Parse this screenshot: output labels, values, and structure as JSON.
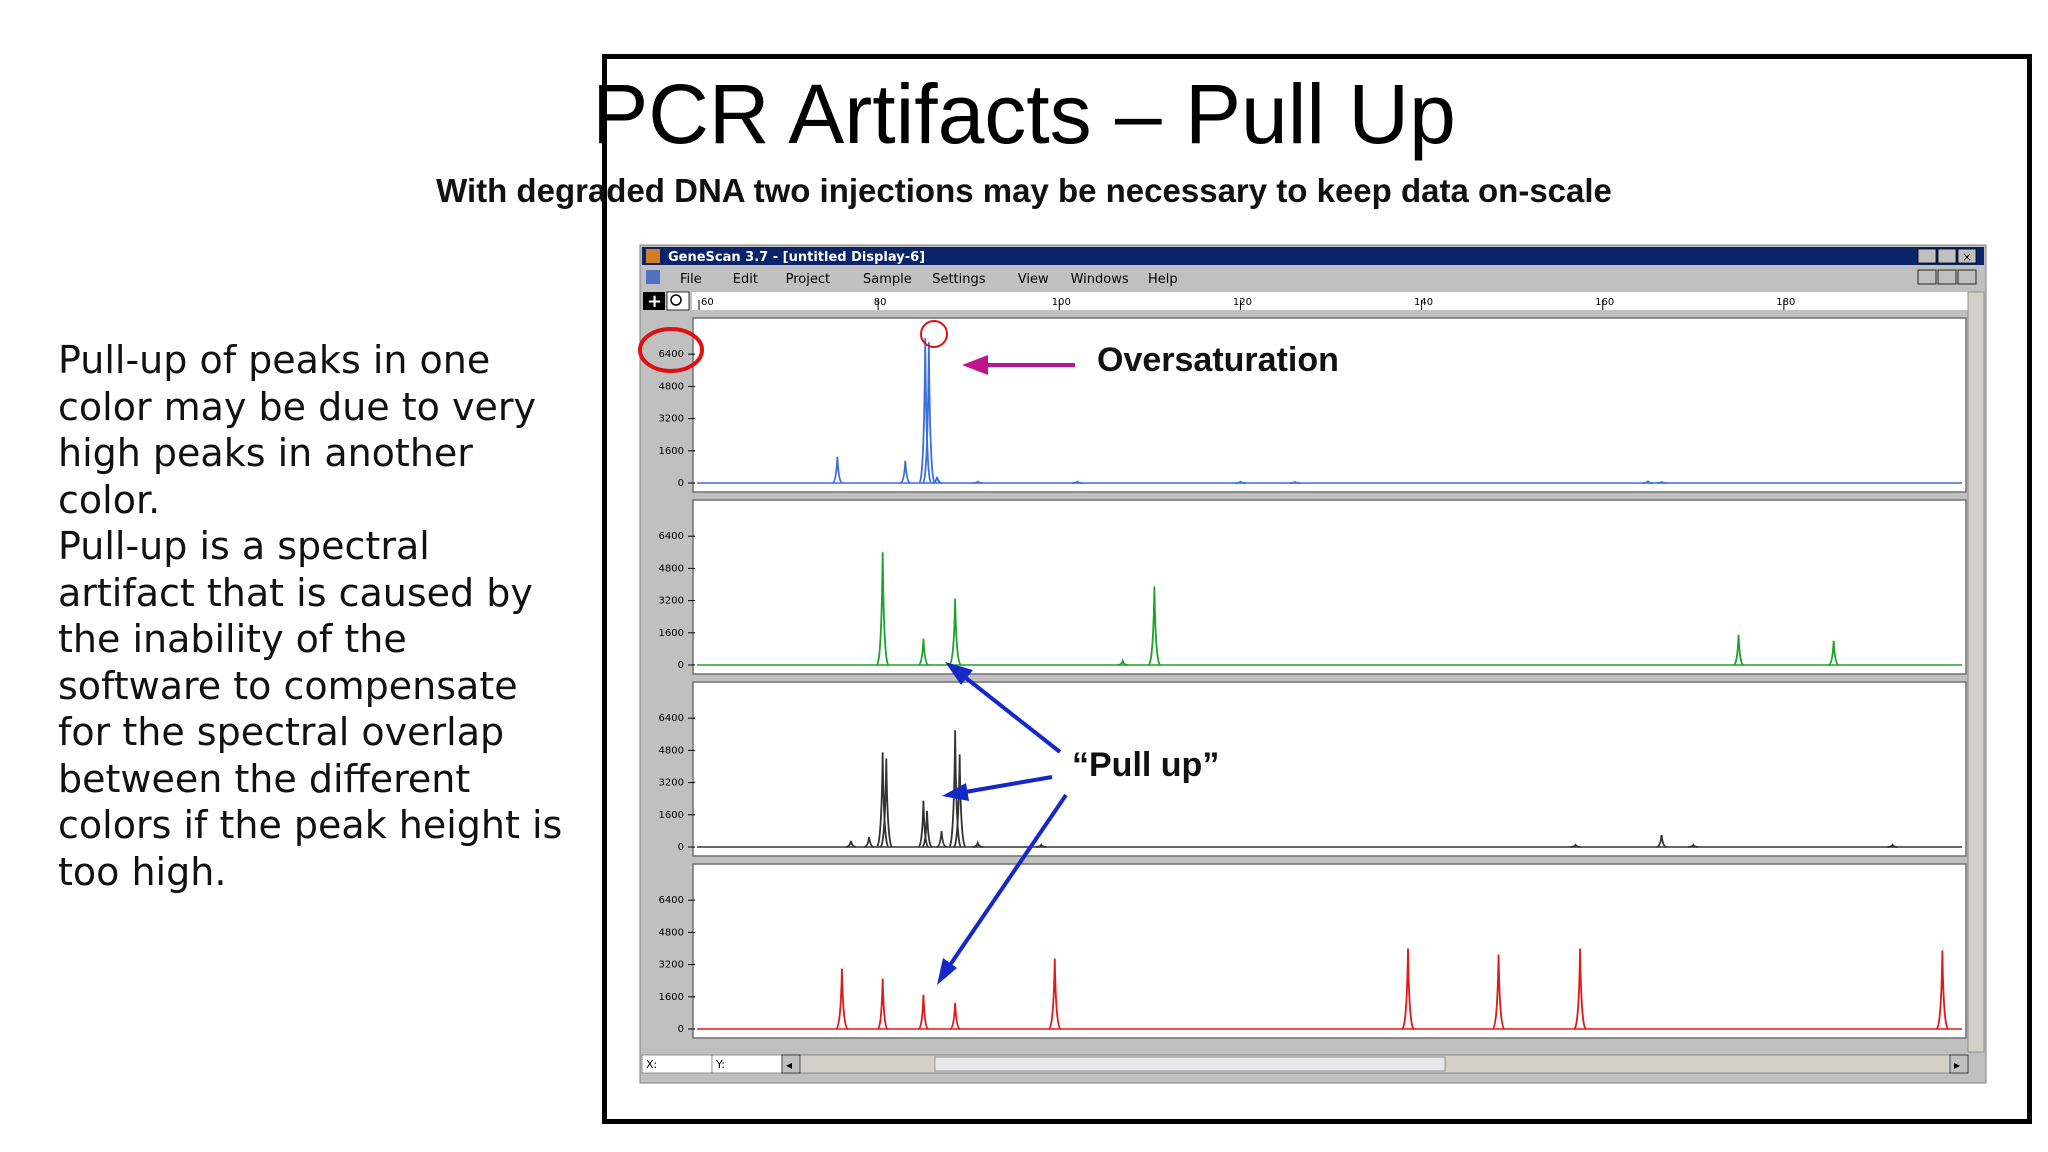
{
  "side_text": [
    "Pull-up of peaks in one color may be due to very high peaks in another color.",
    "Pull-up is a spectral artifact that is caused by the inability of the software to compensate for the spectral overlap between the different colors if the peak height is too high."
  ],
  "slide": {
    "title": "PCR Artifacts – Pull Up",
    "subtitle": "With degraded DNA two injections may be necessary to keep data on-scale"
  },
  "window": {
    "title": "GeneScan 3.7 - [untitled Display-6]",
    "menu": [
      "File",
      "Edit",
      "Project",
      "Sample",
      "Settings",
      "View",
      "Windows",
      "Help"
    ],
    "status": {
      "x_label": "X:",
      "y_label": "Y:"
    }
  },
  "annotations": {
    "oversaturation": "Oversaturation",
    "pull_up": "“Pull up”"
  },
  "colors": {
    "blue_trace": "#3a6fd8",
    "green_trace": "#1aa32a",
    "black_trace": "#333333",
    "red_trace": "#e01818",
    "title_bar": "#0a246a",
    "callout_circle": "#e01010",
    "oversat_arrow": "#c0148c",
    "pullup_arrow": "#1428c8"
  },
  "chart_data": {
    "type": "line",
    "x_ticks": [
      60,
      80,
      100,
      120,
      140,
      160,
      180
    ],
    "xlim": [
      60,
      200
    ],
    "y_ticks": [
      0,
      1600,
      3200,
      4800,
      6400
    ],
    "ylim": [
      0,
      7800
    ],
    "series": [
      {
        "color": "blue",
        "peaks": [
          [
            75.5,
            1300
          ],
          [
            83,
            1100
          ],
          [
            85.2,
            7200
          ],
          [
            85.6,
            7000
          ],
          [
            86.5,
            300
          ],
          [
            91,
            60
          ],
          [
            102,
            60
          ],
          [
            120,
            60
          ],
          [
            126,
            50
          ],
          [
            165,
            80
          ],
          [
            166.5,
            50
          ]
        ]
      },
      {
        "color": "green",
        "peaks": [
          [
            80.5,
            5600
          ],
          [
            85,
            1300
          ],
          [
            88.5,
            3300
          ],
          [
            107,
            200
          ],
          [
            110.5,
            3900
          ],
          [
            175,
            1500
          ],
          [
            185.5,
            1200
          ]
        ]
      },
      {
        "color": "black",
        "peaks": [
          [
            77,
            300
          ],
          [
            79,
            500
          ],
          [
            80.5,
            4700
          ],
          [
            80.9,
            4400
          ],
          [
            85,
            2300
          ],
          [
            85.4,
            1800
          ],
          [
            87,
            800
          ],
          [
            88.5,
            5800
          ],
          [
            89,
            4600
          ],
          [
            91,
            200
          ],
          [
            98,
            100
          ],
          [
            157,
            100
          ],
          [
            166.5,
            600
          ],
          [
            170,
            100
          ],
          [
            192,
            100
          ]
        ]
      },
      {
        "color": "red",
        "peaks": [
          [
            76,
            3000
          ],
          [
            80.5,
            2500
          ],
          [
            85,
            1700
          ],
          [
            88.5,
            1300
          ],
          [
            99.5,
            3500
          ],
          [
            138.5,
            4000
          ],
          [
            148.5,
            3700
          ],
          [
            157.5,
            4000
          ],
          [
            197.5,
            3900
          ]
        ]
      }
    ]
  }
}
